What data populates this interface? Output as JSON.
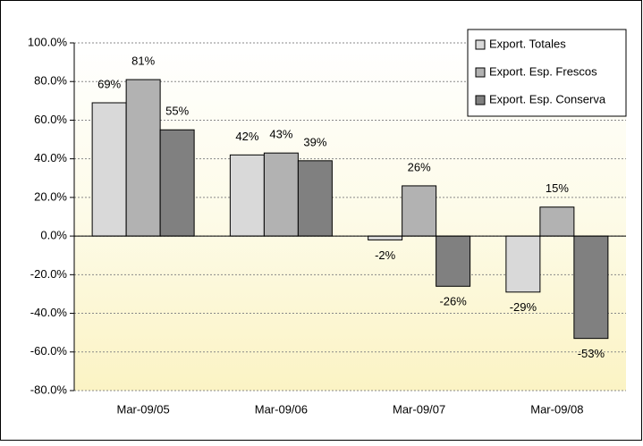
{
  "chart_data": {
    "type": "bar",
    "categories": [
      "Mar-09/05",
      "Mar-09/06",
      "Mar-09/07",
      "Mar-09/08"
    ],
    "series": [
      {
        "name": "Export. Totales",
        "color": "#d9d9d9",
        "values": [
          69,
          42,
          -2,
          -29
        ],
        "value_labels": [
          "69%",
          "42%",
          "-2%",
          "-29%"
        ]
      },
      {
        "name": "Export. Esp. Frescos",
        "color": "#b2b2b2",
        "values": [
          81,
          43,
          26,
          15
        ],
        "value_labels": [
          "81%",
          "43%",
          "26%",
          "15%"
        ]
      },
      {
        "name": "Export. Esp. Conserva",
        "color": "#808080",
        "values": [
          55,
          39,
          -26,
          -53
        ],
        "value_labels": [
          "55%",
          "39%",
          "-26%",
          "-53%"
        ]
      }
    ],
    "ylim": [
      -80,
      100
    ],
    "yticks": [
      {
        "value": -80,
        "label": "-80.0%"
      },
      {
        "value": -60,
        "label": "-60.0%"
      },
      {
        "value": -40,
        "label": "-40.0%"
      },
      {
        "value": -20,
        "label": "-20.0%"
      },
      {
        "value": 0,
        "label": "0.0%"
      },
      {
        "value": 20,
        "label": "20.0%"
      },
      {
        "value": 40,
        "label": "40.0%"
      },
      {
        "value": 60,
        "label": "60.0%"
      },
      {
        "value": 80,
        "label": "80.0%"
      },
      {
        "value": 100,
        "label": "100.0%"
      }
    ],
    "grid": true,
    "legend": "top-right"
  }
}
